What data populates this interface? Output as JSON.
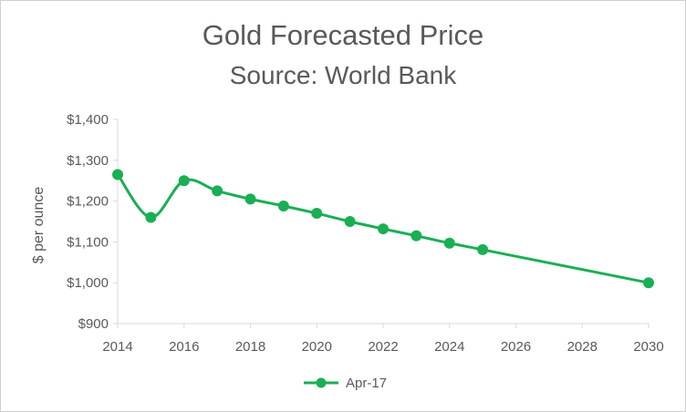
{
  "chart_data": {
    "type": "line",
    "title": "Gold Forecasted Price",
    "subtitle": "Source:  World Bank",
    "xlabel": "",
    "ylabel": "$ per ounce",
    "xlim": [
      2014,
      2030
    ],
    "ylim": [
      900,
      1400
    ],
    "x_ticks": [
      2014,
      2016,
      2018,
      2020,
      2022,
      2024,
      2026,
      2028,
      2030
    ],
    "y_ticks": [
      900,
      1000,
      1100,
      1200,
      1300,
      1400
    ],
    "y_tick_labels": [
      "$900",
      "$1,000",
      "$1,100",
      "$1,200",
      "$1,300",
      "$1,400"
    ],
    "grid": false,
    "legend_position": "bottom",
    "series": [
      {
        "name": "Apr-17",
        "color": "#1aaf54",
        "x": [
          2014,
          2015,
          2016,
          2017,
          2018,
          2019,
          2020,
          2021,
          2022,
          2023,
          2024,
          2025,
          2030
        ],
        "y": [
          1265,
          1160,
          1250,
          1225,
          1205,
          1188,
          1170,
          1150,
          1132,
          1115,
          1097,
          1081,
          1000
        ]
      }
    ]
  }
}
